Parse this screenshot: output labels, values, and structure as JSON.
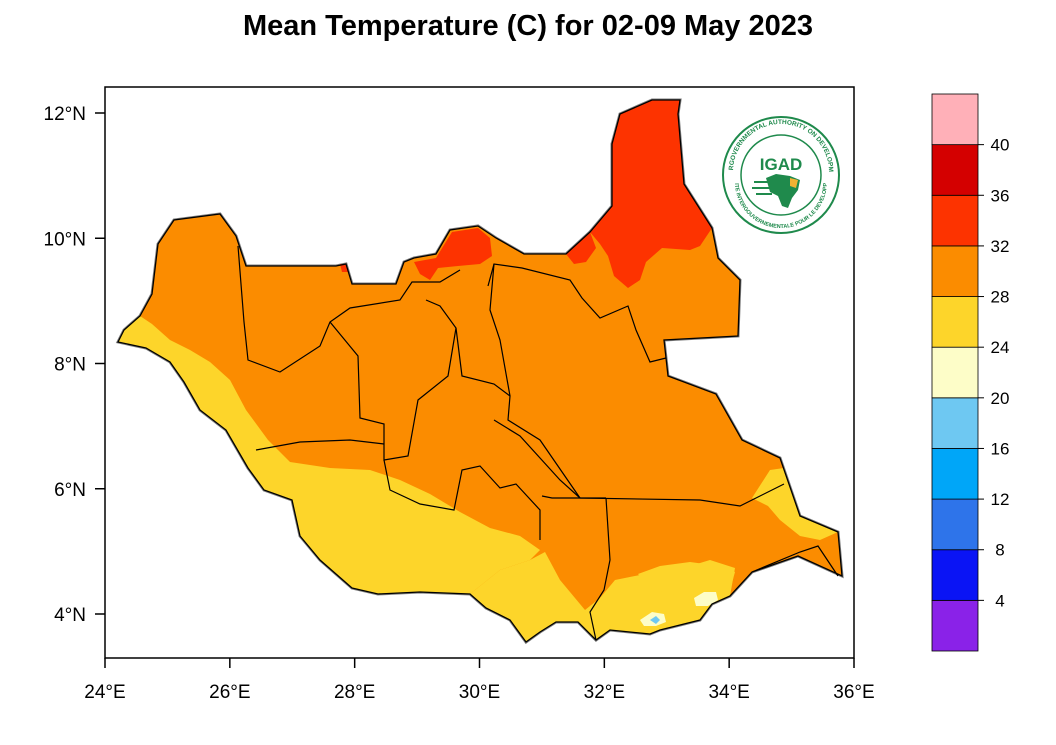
{
  "title": "Mean Temperature (C) for 02-09 May 2023",
  "map": {
    "region": "South Sudan",
    "lon_range": [
      24,
      36
    ],
    "lat_range": [
      3.5,
      12.3
    ],
    "lon_ticks": [
      "24°E",
      "26°E",
      "28°E",
      "30°E",
      "32°E",
      "34°E",
      "36°E"
    ],
    "lat_ticks": [
      "4°N",
      "6°N",
      "8°N",
      "10°N",
      "12°N"
    ]
  },
  "legend": {
    "type": "colorbar",
    "labels": [
      "4",
      "8",
      "12",
      "16",
      "20",
      "24",
      "28",
      "32",
      "36",
      "40"
    ],
    "bins": [
      {
        "range": "<4",
        "color": "#8a22e8"
      },
      {
        "range": "4-8",
        "color": "#0a14f5"
      },
      {
        "range": "8-12",
        "color": "#2e74ea"
      },
      {
        "range": "12-16",
        "color": "#00a6f8"
      },
      {
        "range": "16-20",
        "color": "#6ec8f2"
      },
      {
        "range": "20-24",
        "color": "#fdfdc8"
      },
      {
        "range": "24-28",
        "color": "#fdd52a"
      },
      {
        "range": "28-32",
        "color": "#fb8c00"
      },
      {
        "range": "32-36",
        "color": "#fd3300"
      },
      {
        "range": "36-40",
        "color": "#d40000"
      },
      {
        "range": ">40",
        "color": "#ffb0b8"
      }
    ]
  },
  "logo": {
    "name": "IGAD",
    "ring_text_top": "INTERGOVERNMENTAL AUTHORITY ON DEVELOPMENT",
    "ring_text_bottom": "AUTORITE INTERGOUVERNEMENTALE POUR LE DEVELOPPEMENT"
  }
}
